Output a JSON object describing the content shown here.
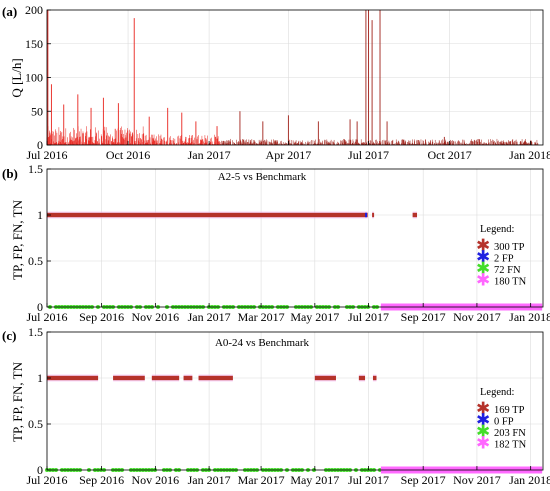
{
  "colors": {
    "flow": "#e8231c",
    "flow_dark": "#a02018",
    "TP": "#b5322a",
    "FP": "#2020e0",
    "FN": "#44dd2a",
    "TN": "#ff66ff",
    "grid": "#dcdcdc",
    "axis": "#000000"
  },
  "chart_data": [
    {
      "panel": "(a)",
      "type": "line",
      "ylabel": "Q [L/h]",
      "ylim": [
        0,
        200
      ],
      "yticks": [
        0,
        50,
        100,
        150,
        200
      ],
      "xlim": [
        "2016-07-01",
        "2018-01-15"
      ],
      "xticks": [
        "Jul 2016",
        "Oct 2016",
        "Jan 2017",
        "Apr 2017",
        "Jul 2017",
        "Oct 2017",
        "Jan 2018"
      ],
      "spikes": [
        {
          "x": "2016-07-02",
          "y": 200
        },
        {
          "x": "2016-07-06",
          "y": 90
        },
        {
          "x": "2016-07-20",
          "y": 60
        },
        {
          "x": "2016-08-05",
          "y": 75
        },
        {
          "x": "2016-08-20",
          "y": 55
        },
        {
          "x": "2016-09-03",
          "y": 70
        },
        {
          "x": "2016-09-20",
          "y": 62
        },
        {
          "x": "2016-10-08",
          "y": 188
        },
        {
          "x": "2016-10-25",
          "y": 42
        },
        {
          "x": "2016-11-15",
          "y": 55
        },
        {
          "x": "2016-12-01",
          "y": 48
        },
        {
          "x": "2016-12-17",
          "y": 35
        },
        {
          "x": "2017-01-10",
          "y": 28
        },
        {
          "x": "2017-02-05",
          "y": 50
        },
        {
          "x": "2017-03-03",
          "y": 35
        },
        {
          "x": "2017-04-01",
          "y": 44
        },
        {
          "x": "2017-05-05",
          "y": 35
        },
        {
          "x": "2017-06-10",
          "y": 38
        },
        {
          "x": "2017-06-18",
          "y": 35
        },
        {
          "x": "2017-06-28",
          "y": 200
        },
        {
          "x": "2017-07-01",
          "y": 200
        },
        {
          "x": "2017-07-05",
          "y": 185
        },
        {
          "x": "2017-07-14",
          "y": 200
        },
        {
          "x": "2017-07-22",
          "y": 35
        },
        {
          "x": "2017-08-10",
          "y": 8
        },
        {
          "x": "2017-09-25",
          "y": 12
        },
        {
          "x": "2017-12-25",
          "y": 5
        }
      ]
    },
    {
      "panel": "(b)",
      "type": "scatter",
      "title": "A2-5 vs Benchmark",
      "ylabel": "TP, FP, FN, TN",
      "ylim": [
        0,
        1.5
      ],
      "yticks": [
        0,
        0.5,
        1,
        1.5
      ],
      "xlim": [
        "2016-07-01",
        "2018-01-15"
      ],
      "xticks": [
        "Jul 2016",
        "Sep 2016",
        "Nov 2016",
        "Jan 2017",
        "Mar 2017",
        "May 2017",
        "Jul 2017",
        "Sep 2017",
        "Nov 2017",
        "Jan 2018"
      ],
      "legend": {
        "title": "Legend:",
        "entries": [
          {
            "key": "TP",
            "count": "300",
            "label": "TP"
          },
          {
            "key": "FP",
            "count": "2",
            "label": "FP"
          },
          {
            "key": "FN",
            "count": "72",
            "label": "FN"
          },
          {
            "key": "TN",
            "count": "180",
            "label": "TN"
          }
        ]
      },
      "series": [
        {
          "name": "TP",
          "y": 1,
          "ranges": [
            [
              "2016-07-01",
              "2017-06-30"
            ],
            [
              "2017-07-05",
              "2017-07-07"
            ],
            [
              "2017-08-20",
              "2017-08-25"
            ]
          ]
        },
        {
          "name": "FP",
          "y": 1,
          "ranges": [
            [
              "2017-06-27",
              "2017-06-28"
            ]
          ]
        },
        {
          "name": "FN",
          "y": 0,
          "ranges": [
            [
              "2016-07-01",
              "2017-07-15"
            ]
          ]
        },
        {
          "name": "TN",
          "y": 0,
          "ranges": [
            [
              "2017-07-15",
              "2018-01-14"
            ]
          ]
        }
      ]
    },
    {
      "panel": "(c)",
      "type": "scatter",
      "title": "A0-24 vs Benchmark",
      "ylabel": "TP, FP, FN, TN",
      "ylim": [
        0,
        1.5
      ],
      "yticks": [
        0,
        0.5,
        1,
        1.5
      ],
      "xlim": [
        "2016-07-01",
        "2018-01-15"
      ],
      "xticks": [
        "Jul 2016",
        "Sep 2016",
        "Nov 2016",
        "Jan 2017",
        "Mar 2017",
        "May 2017",
        "Jul 2017",
        "Sep 2017",
        "Nov 2017",
        "Jan 2018"
      ],
      "legend": {
        "title": "Legend:",
        "entries": [
          {
            "key": "TP",
            "count": "169",
            "label": "TP"
          },
          {
            "key": "FP",
            "count": "0",
            "label": "FP"
          },
          {
            "key": "FN",
            "count": "203",
            "label": "FN"
          },
          {
            "key": "TN",
            "count": "182",
            "label": "TN"
          }
        ]
      },
      "series": [
        {
          "name": "TP",
          "y": 1,
          "ranges": [
            [
              "2016-07-01",
              "2016-08-28"
            ],
            [
              "2016-09-14",
              "2016-10-20"
            ],
            [
              "2016-10-28",
              "2016-11-28"
            ],
            [
              "2016-12-03",
              "2016-12-13"
            ],
            [
              "2016-12-20",
              "2017-01-28"
            ],
            [
              "2017-05-01",
              "2017-05-25"
            ],
            [
              "2017-06-20",
              "2017-06-27"
            ],
            [
              "2017-07-06",
              "2017-07-10"
            ]
          ]
        },
        {
          "name": "FN",
          "y": 0,
          "ranges": [
            [
              "2016-07-01",
              "2017-07-15"
            ]
          ]
        },
        {
          "name": "TN",
          "y": 0,
          "ranges": [
            [
              "2017-07-15",
              "2018-01-14"
            ]
          ]
        }
      ]
    }
  ]
}
